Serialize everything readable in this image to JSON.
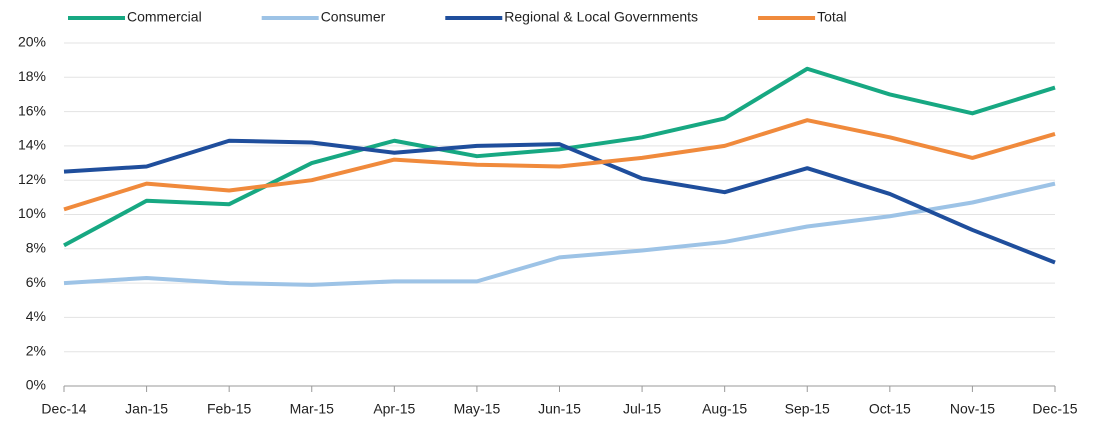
{
  "chart_data": {
    "type": "line",
    "categories": [
      "Dec-14",
      "Jan-15",
      "Feb-15",
      "Mar-15",
      "Apr-15",
      "May-15",
      "Jun-15",
      "Jul-15",
      "Aug-15",
      "Sep-15",
      "Oct-15",
      "Nov-15",
      "Dec-15"
    ],
    "series": [
      {
        "name": "Commercial",
        "color": "#17a882",
        "values": [
          8.2,
          10.8,
          10.6,
          13.0,
          14.3,
          13.4,
          13.8,
          14.5,
          15.6,
          18.5,
          17.0,
          15.9,
          17.4
        ]
      },
      {
        "name": "Consumer",
        "color": "#9dc3e6",
        "values": [
          6.0,
          6.3,
          6.0,
          5.9,
          6.1,
          6.1,
          7.5,
          7.9,
          8.4,
          9.3,
          9.9,
          10.7,
          11.8
        ]
      },
      {
        "name": "Regional & Local Governments",
        "color": "#1f4e9c",
        "values": [
          12.5,
          12.8,
          14.3,
          14.2,
          13.6,
          14.0,
          14.1,
          12.1,
          11.3,
          12.7,
          11.2,
          9.1,
          7.2
        ]
      },
      {
        "name": "Total",
        "color": "#f08a3c",
        "values": [
          10.3,
          11.8,
          11.4,
          12.0,
          13.2,
          12.9,
          12.8,
          13.3,
          14.0,
          15.5,
          14.5,
          13.3,
          14.7
        ]
      }
    ],
    "ylim": [
      0,
      20
    ],
    "yticks": [
      {
        "value": 0,
        "label": "0%"
      },
      {
        "value": 2,
        "label": "2%"
      },
      {
        "value": 4,
        "label": "4%"
      },
      {
        "value": 6,
        "label": "6%"
      },
      {
        "value": 8,
        "label": "8%"
      },
      {
        "value": 10,
        "label": "10%"
      },
      {
        "value": 12,
        "label": "12%"
      },
      {
        "value": 14,
        "label": "14%"
      },
      {
        "value": 16,
        "label": "16%"
      },
      {
        "value": 18,
        "label": "18%"
      },
      {
        "value": 20,
        "label": "20%"
      }
    ],
    "grid": true,
    "legend": "top"
  }
}
